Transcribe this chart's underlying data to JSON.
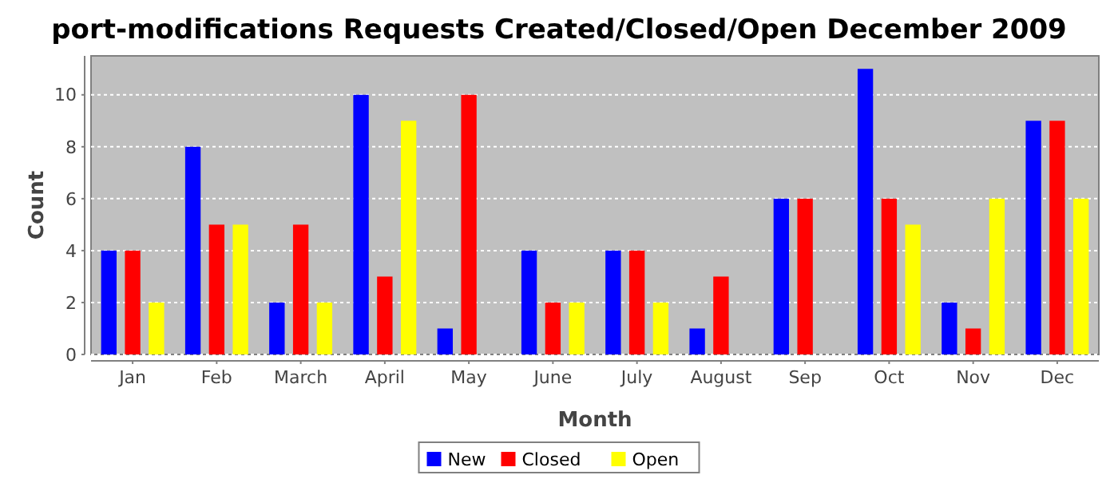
{
  "chart_data": {
    "type": "bar",
    "title": "port-modifications Requests Created/Closed/Open December 2009",
    "xlabel": "Month",
    "ylabel": "Count",
    "categories": [
      "Jan",
      "Feb",
      "March",
      "April",
      "May",
      "June",
      "July",
      "August",
      "Sep",
      "Oct",
      "Nov",
      "Dec"
    ],
    "series": [
      {
        "name": "New",
        "color": "#0000ff",
        "values": [
          4,
          8,
          2,
          10,
          1,
          4,
          4,
          1,
          6,
          11,
          2,
          9
        ]
      },
      {
        "name": "Closed",
        "color": "#ff0000",
        "values": [
          4,
          5,
          5,
          3,
          10,
          2,
          4,
          3,
          6,
          6,
          1,
          9
        ]
      },
      {
        "name": "Open",
        "color": "#ffff00",
        "values": [
          2,
          5,
          2,
          9,
          0,
          2,
          2,
          0,
          0,
          5,
          6,
          6
        ]
      }
    ],
    "ylim": [
      0,
      11.5
    ],
    "yticks": [
      0,
      2,
      4,
      6,
      8,
      10
    ],
    "grid": "y",
    "legend": "bottom"
  }
}
